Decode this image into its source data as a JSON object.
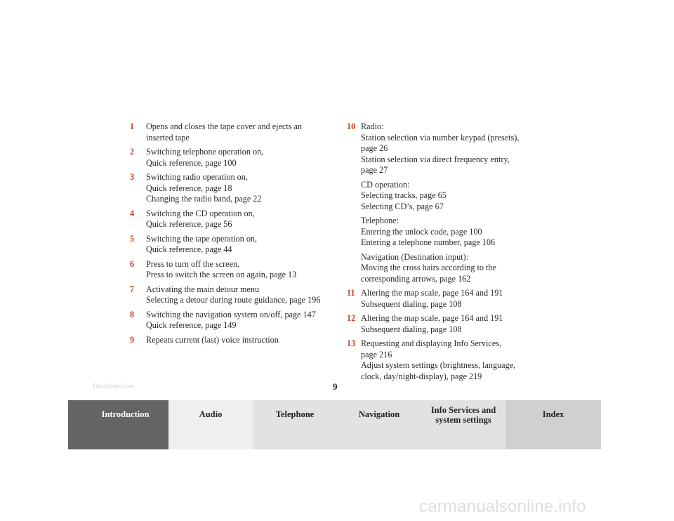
{
  "left_items": [
    {
      "num": "1",
      "lines": [
        "Opens and closes the tape cover and ejects an",
        "inserted tape"
      ]
    },
    {
      "num": "2",
      "lines": [
        "Switching telephone operation on,",
        "Quick reference, page 100"
      ]
    },
    {
      "num": "3",
      "lines": [
        "Switching radio operation on,",
        "Quick reference, page 18",
        "Changing the radio band, page 22"
      ]
    },
    {
      "num": "4",
      "lines": [
        "Switching the CD operation on,",
        "Quick reference, page 56"
      ]
    },
    {
      "num": "5",
      "lines": [
        "Switching the tape operation on,",
        "Quick reference, page 44"
      ]
    },
    {
      "num": "6",
      "lines": [
        "Press to turn off the screen,",
        "Press to switch the screen on again, page 13"
      ]
    },
    {
      "num": "7",
      "lines": [
        "Activating the main detour menu",
        "Selecting a detour during route guidance, page 196"
      ]
    },
    {
      "num": "8",
      "lines": [
        "Switching the navigation system on/off, page 147",
        "Quick reference, page 149"
      ]
    },
    {
      "num": "9",
      "lines": [
        "Repeats current (last) voice instruction"
      ]
    }
  ],
  "right_items": [
    {
      "num": "10",
      "groups": [
        [
          "Radio:",
          "Station selection via number keypad (presets),",
          "page 26",
          "Station selection via direct frequency entry,",
          "page 27"
        ],
        [
          "CD operation:",
          "Selecting tracks, page 65",
          "Selecting CD’s, page 67"
        ],
        [
          "Telephone:",
          "Entering the unlock code, page 100",
          "Entering a telephone number, page 106"
        ],
        [
          "Navigation (Destination input):",
          "Moving the cross hairs according to the",
          "corresponding arrows, page 162"
        ]
      ]
    },
    {
      "num": "11",
      "groups": [
        [
          "Altering the map scale, page 164 and 191",
          "Subsequent dialing, page 108"
        ]
      ]
    },
    {
      "num": "12",
      "groups": [
        [
          "Altering the map scale, page 164 and 191",
          "Subsequent dialing, page 108"
        ]
      ]
    },
    {
      "num": "13",
      "groups": [
        [
          "Requesting and displaying Info Services,",
          "page 216",
          "Adjust system settings (brightness, language,",
          "clock, day/night-display), page 219"
        ]
      ]
    }
  ],
  "footer": {
    "section": "Introduction",
    "page": "9"
  },
  "tabs": {
    "introduction": "Introduction",
    "audio": "Audio",
    "telephone": "Telephone",
    "navigation": "Navigation",
    "info_line1": "Info Services and",
    "info_line2": "system settings",
    "index": "Index"
  },
  "watermark": "carmanualsonline.info"
}
